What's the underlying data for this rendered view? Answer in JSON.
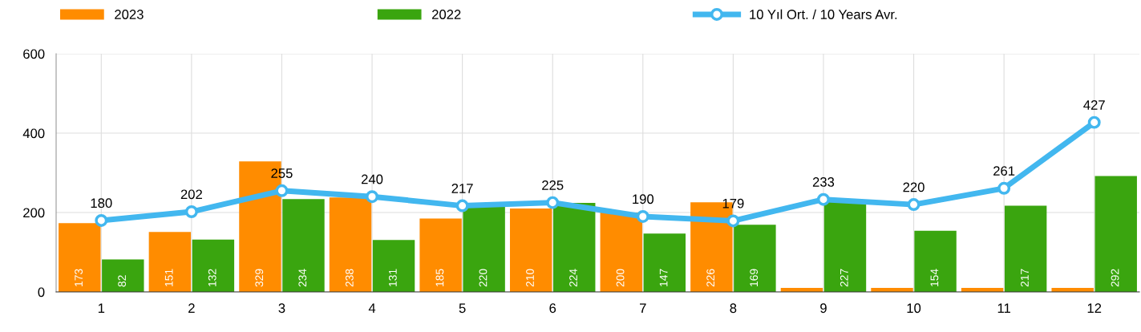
{
  "chart_data": {
    "type": "bar",
    "categories": [
      "1",
      "2",
      "3",
      "4",
      "5",
      "6",
      "7",
      "8",
      "9",
      "10",
      "11",
      "12"
    ],
    "series": [
      {
        "name": "2023",
        "color": "#ff8c00",
        "values": [
          173,
          151,
          329,
          238,
          185,
          210,
          200,
          226,
          10,
          10,
          10,
          10
        ],
        "value_labels": [
          "173",
          "151",
          "329",
          "238",
          "185",
          "210",
          "200",
          "226",
          null,
          null,
          null,
          null
        ]
      },
      {
        "name": "2022",
        "color": "#3aa50f",
        "values": [
          82,
          132,
          234,
          131,
          220,
          224,
          147,
          169,
          227,
          154,
          217,
          292
        ],
        "value_labels": [
          "82",
          "132",
          "234",
          "131",
          "220",
          "224",
          "147",
          "169",
          "227",
          "154",
          "217",
          "292"
        ]
      },
      {
        "name": "10 Yıl Ort. / 10 Years Avr.",
        "type": "line",
        "color": "#42b7ef",
        "marker": "circle",
        "values": [
          180,
          202,
          255,
          240,
          217,
          225,
          190,
          179,
          233,
          220,
          261,
          427
        ],
        "value_labels": [
          "180",
          "202",
          "255",
          "240",
          "217",
          "225",
          "190",
          "179",
          "233",
          "220",
          "261",
          "427"
        ]
      }
    ],
    "ylim": [
      0,
      600
    ],
    "yticks": [
      0,
      200,
      400,
      600
    ],
    "grid": true,
    "legend": "top"
  }
}
